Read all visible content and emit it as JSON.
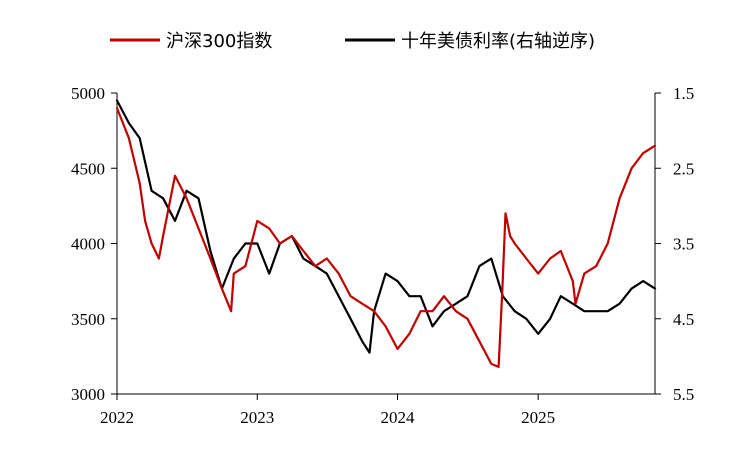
{
  "chart_data": {
    "type": "line",
    "title": "",
    "legend_position": "top-center",
    "grid": false,
    "x_ticks": [
      "2022",
      "2023",
      "2024",
      "2025"
    ],
    "x_range": [
      "2022-01",
      "2025-11"
    ],
    "y_left": {
      "range": [
        3000,
        5000
      ],
      "ticks": [
        "3000",
        "3500",
        "4000",
        "4500",
        "5000"
      ]
    },
    "y_right": {
      "range": [
        1.5,
        5.5
      ],
      "inverted": true,
      "ticks": [
        "1.5",
        "2.5",
        "3.5",
        "4.5",
        "5.5"
      ]
    },
    "series": [
      {
        "name": "沪深300指数",
        "axis": "left",
        "color": "#c00000",
        "x": [
          "2022-01",
          "2022-02",
          "2022-03",
          "2022-03-15",
          "2022-04",
          "2022-04-20",
          "2022-05",
          "2022-06",
          "2022-07",
          "2022-08",
          "2022-09",
          "2022-10",
          "2022-10-25",
          "2022-11",
          "2022-12",
          "2023-01",
          "2023-02",
          "2023-03",
          "2023-04",
          "2023-05",
          "2023-06",
          "2023-07",
          "2023-08",
          "2023-09",
          "2023-10",
          "2023-11",
          "2023-12",
          "2024-01",
          "2024-02",
          "2024-03",
          "2024-04",
          "2024-05",
          "2024-06",
          "2024-07",
          "2024-08",
          "2024-09",
          "2024-09-20",
          "2024-09-30",
          "2024-10-08",
          "2024-10-20",
          "2024-11",
          "2024-12",
          "2025-01",
          "2025-02",
          "2025-03",
          "2025-04",
          "2025-04-08",
          "2025-05",
          "2025-06",
          "2025-07",
          "2025-08",
          "2025-09",
          "2025-10",
          "2025-11"
        ],
        "values": [
          4900,
          4700,
          4400,
          4150,
          4000,
          3900,
          4050,
          4450,
          4300,
          4100,
          3900,
          3700,
          3550,
          3800,
          3850,
          4150,
          4100,
          4000,
          4050,
          3950,
          3850,
          3900,
          3800,
          3650,
          3600,
          3550,
          3450,
          3300,
          3400,
          3550,
          3550,
          3650,
          3550,
          3500,
          3350,
          3200,
          3180,
          3700,
          4200,
          4050,
          4000,
          3900,
          3800,
          3900,
          3950,
          3750,
          3600,
          3800,
          3850,
          4000,
          4300,
          4500,
          4600,
          4650
        ]
      },
      {
        "name": "十年美债利率(右轴逆序)",
        "axis": "right",
        "color": "#000000",
        "x": [
          "2022-01",
          "2022-02",
          "2022-03",
          "2022-04",
          "2022-05",
          "2022-06",
          "2022-07",
          "2022-08",
          "2022-09",
          "2022-10",
          "2022-11",
          "2022-12",
          "2023-01",
          "2023-02",
          "2023-03",
          "2023-04",
          "2023-05",
          "2023-06",
          "2023-07",
          "2023-08",
          "2023-09",
          "2023-10",
          "2023-10-20",
          "2023-11",
          "2023-12",
          "2024-01",
          "2024-02",
          "2024-03",
          "2024-04",
          "2024-05",
          "2024-06",
          "2024-07",
          "2024-08",
          "2024-09",
          "2024-10",
          "2024-11",
          "2024-12",
          "2025-01",
          "2025-02",
          "2025-03",
          "2025-04",
          "2025-05",
          "2025-06",
          "2025-07",
          "2025-08",
          "2025-09",
          "2025-10",
          "2025-11"
        ],
        "values": [
          1.6,
          1.9,
          2.1,
          2.8,
          2.9,
          3.2,
          2.8,
          2.9,
          3.6,
          4.1,
          3.7,
          3.5,
          3.5,
          3.9,
          3.5,
          3.4,
          3.7,
          3.8,
          3.9,
          4.2,
          4.5,
          4.8,
          4.95,
          4.4,
          3.9,
          4.0,
          4.2,
          4.2,
          4.6,
          4.4,
          4.3,
          4.2,
          3.8,
          3.7,
          4.2,
          4.4,
          4.5,
          4.7,
          4.5,
          4.2,
          4.3,
          4.4,
          4.4,
          4.4,
          4.3,
          4.1,
          4.0,
          4.1
        ]
      }
    ]
  }
}
